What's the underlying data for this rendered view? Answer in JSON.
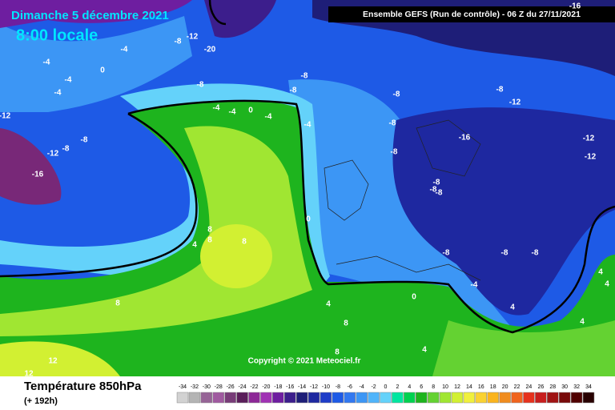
{
  "header": {
    "date": "Dimanche 5 décembre 2021",
    "time": "8:00 locale",
    "run": "Ensemble GEFS  (Run de contrôle)  -  06 Z du 27/11/2021"
  },
  "map": {
    "contour_labels": [
      -12,
      -8,
      -4,
      -20,
      0,
      -4,
      -4,
      -4,
      -8,
      -8,
      -8,
      -16,
      -8,
      -12,
      -4,
      -4,
      0,
      -4,
      -4,
      -8,
      -16,
      -8,
      -12,
      -8,
      -8,
      -12,
      -12,
      -16,
      -8,
      -8,
      -8,
      0,
      4,
      8,
      8,
      8,
      -8,
      -8,
      -8,
      -4,
      0,
      4,
      8,
      8,
      4,
      4,
      4,
      12,
      12,
      8,
      4,
      -12,
      -8,
      4
    ]
  },
  "copyright": "Copyright © 2021 Meteociel.fr",
  "legend": {
    "title": "Température 850hPa",
    "lead": "(+ 192h)",
    "ticks": [
      -34,
      -32,
      -30,
      -28,
      -26,
      -24,
      -22,
      -20,
      -18,
      -16,
      -14,
      -12,
      -10,
      -8,
      -6,
      -4,
      -2,
      0,
      2,
      4,
      6,
      8,
      10,
      12,
      14,
      16,
      18,
      20,
      22,
      24,
      26,
      28,
      30,
      32,
      34
    ],
    "colors": [
      "#d2d2d2",
      "#b4b4b4",
      "#966496",
      "#a05aa0",
      "#783c78",
      "#5a1e5a",
      "#8c2896",
      "#a032b4",
      "#6e1ea0",
      "#3c1e8c",
      "#1e1e78",
      "#1e28a0",
      "#1e3cc8",
      "#1e5ae6",
      "#3278f0",
      "#3c96f5",
      "#50b4fa",
      "#64d2fa",
      "#00e6a0",
      "#00d250",
      "#1eb41e",
      "#64d232",
      "#a0e632",
      "#d2f032",
      "#f0f03c",
      "#fad232",
      "#fab41e",
      "#f08c1e",
      "#f0641e",
      "#e6321e",
      "#c81e1e",
      "#a01414",
      "#780a0a",
      "#500000",
      "#280000"
    ]
  }
}
